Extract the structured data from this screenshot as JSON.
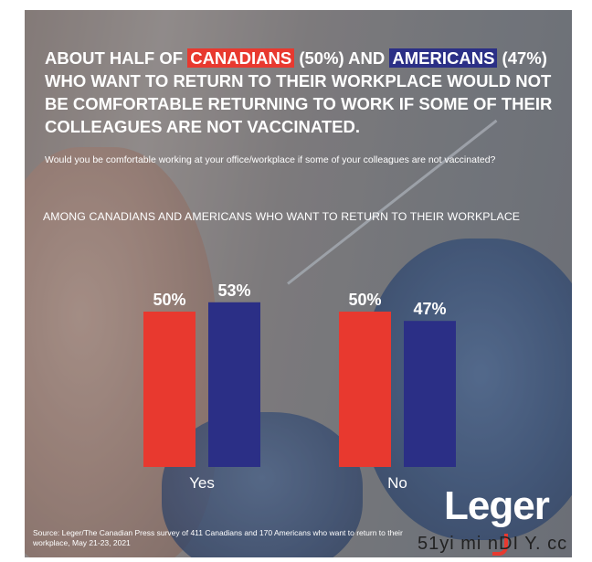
{
  "headline": {
    "part1": "ABOUT HALF OF ",
    "canadians": "CANADIANS",
    "part2": " (50%) AND ",
    "americans": "AMERICANS",
    "part3": " (47%) WHO WANT TO RETURN TO THEIR WORKPLACE WOULD NOT BE COMFORTABLE RETURNING TO WORK IF SOME OF THEIR COLLEAGUES ARE NOT VACCINATED."
  },
  "subtitle": "Would you be comfortable working at your office/workplace if some of your colleagues are not vaccinated?",
  "base_label": "AMONG CANADIANS AND AMERICANS WHO WANT TO RETURN TO THEIR WORKPLACE",
  "source": "Source: Leger/The Canadian Press survey of 411 Canadians and 170 Americans who want to return to their workplace, May 21-23, 2021",
  "logo_text": "Leger",
  "watermark": "51yi mi nDI Y. cc",
  "colors": {
    "canadians": "#e8392f",
    "americans": "#2b2f86"
  },
  "chart_data": {
    "type": "bar",
    "categories": [
      "Yes",
      "No"
    ],
    "series": [
      {
        "name": "CANADIANS",
        "values": [
          50,
          50
        ],
        "labels": [
          "50%",
          "50%"
        ],
        "color": "#e8392f"
      },
      {
        "name": "AMERICANS",
        "values": [
          53,
          47
        ],
        "labels": [
          "53%",
          "47%"
        ],
        "color": "#2b2f86"
      }
    ],
    "unit": "%",
    "ylim": [
      0,
      100
    ],
    "grid": false,
    "legend": "none"
  }
}
